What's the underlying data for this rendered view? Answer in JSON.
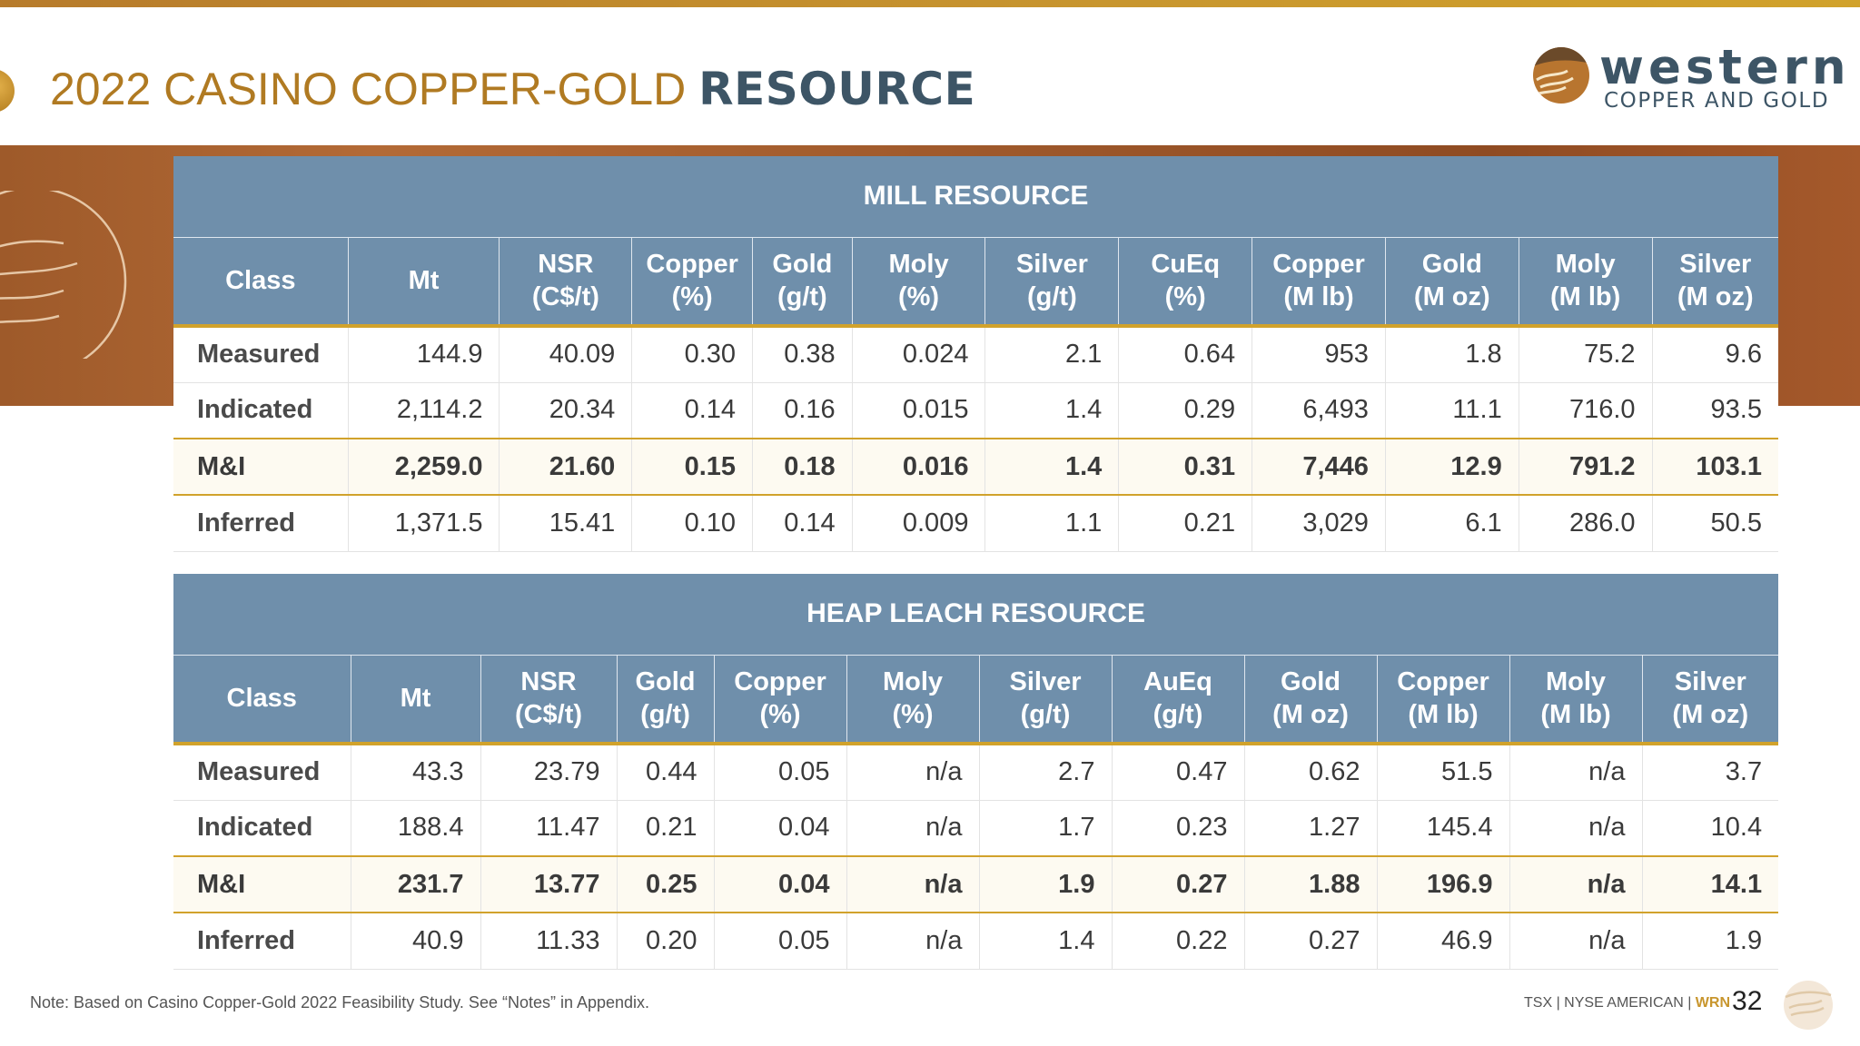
{
  "slide": {
    "title_regular": "2022 CASINO COPPER-GOLD ",
    "title_bold": "RESOURCE"
  },
  "logo": {
    "word": "western",
    "sub": "COPPER AND GOLD"
  },
  "mill": {
    "title": "MILL RESOURCE",
    "headers": [
      [
        "Class",
        ""
      ],
      [
        "Mt",
        ""
      ],
      [
        "NSR",
        "(C$/t)"
      ],
      [
        "Copper",
        "(%)"
      ],
      [
        "Gold",
        "(g/t)"
      ],
      [
        "Moly",
        "(%)"
      ],
      [
        "Silver",
        "(g/t)"
      ],
      [
        "CuEq",
        "(%)"
      ],
      [
        "Copper",
        "(M lb)"
      ],
      [
        "Gold",
        "(M oz)"
      ],
      [
        "Moly",
        "(M lb)"
      ],
      [
        "Silver",
        "(M oz)"
      ]
    ],
    "rows": [
      [
        "Measured",
        "144.9",
        "40.09",
        "0.30",
        "0.38",
        "0.024",
        "2.1",
        "0.64",
        "953",
        "1.8",
        "75.2",
        "9.6"
      ],
      [
        "Indicated",
        "2,114.2",
        "20.34",
        "0.14",
        "0.16",
        "0.015",
        "1.4",
        "0.29",
        "6,493",
        "11.1",
        "716.0",
        "93.5"
      ],
      [
        "M&I",
        "2,259.0",
        "21.60",
        "0.15",
        "0.18",
        "0.016",
        "1.4",
        "0.31",
        "7,446",
        "12.9",
        "791.2",
        "103.1"
      ],
      [
        "Inferred",
        "1,371.5",
        "15.41",
        "0.10",
        "0.14",
        "0.009",
        "1.1",
        "0.21",
        "3,029",
        "6.1",
        "286.0",
        "50.5"
      ]
    ]
  },
  "heap": {
    "title": "HEAP LEACH RESOURCE",
    "headers": [
      [
        "Class",
        ""
      ],
      [
        "Mt",
        ""
      ],
      [
        "NSR",
        "(C$/t)"
      ],
      [
        "Gold",
        "(g/t)"
      ],
      [
        "Copper",
        "(%)"
      ],
      [
        "Moly",
        "(%)"
      ],
      [
        "Silver",
        "(g/t)"
      ],
      [
        "AuEq",
        "(g/t)"
      ],
      [
        "Gold",
        "(M oz)"
      ],
      [
        "Copper",
        "(M lb)"
      ],
      [
        "Moly",
        "(M lb)"
      ],
      [
        "Silver",
        "(M oz)"
      ]
    ],
    "rows": [
      [
        "Measured",
        "43.3",
        "23.79",
        "0.44",
        "0.05",
        "n/a",
        "2.7",
        "0.47",
        "0.62",
        "51.5",
        "n/a",
        "3.7"
      ],
      [
        "Indicated",
        "188.4",
        "11.47",
        "0.21",
        "0.04",
        "n/a",
        "1.7",
        "0.23",
        "1.27",
        "145.4",
        "n/a",
        "10.4"
      ],
      [
        "M&I",
        "231.7",
        "13.77",
        "0.25",
        "0.04",
        "n/a",
        "1.9",
        "0.27",
        "1.88",
        "196.9",
        "n/a",
        "14.1"
      ],
      [
        "Inferred",
        "40.9",
        "11.33",
        "0.20",
        "0.05",
        "n/a",
        "1.4",
        "0.22",
        "0.27",
        "46.9",
        "n/a",
        "1.9"
      ]
    ]
  },
  "footer": {
    "note": "Note: Based on Casino Copper-Gold 2022 Feasibility Study. See “Notes” in Appendix.",
    "exchanges": "TSX | NYSE AMERICAN | ",
    "ticker": "WRN",
    "page": "32"
  }
}
